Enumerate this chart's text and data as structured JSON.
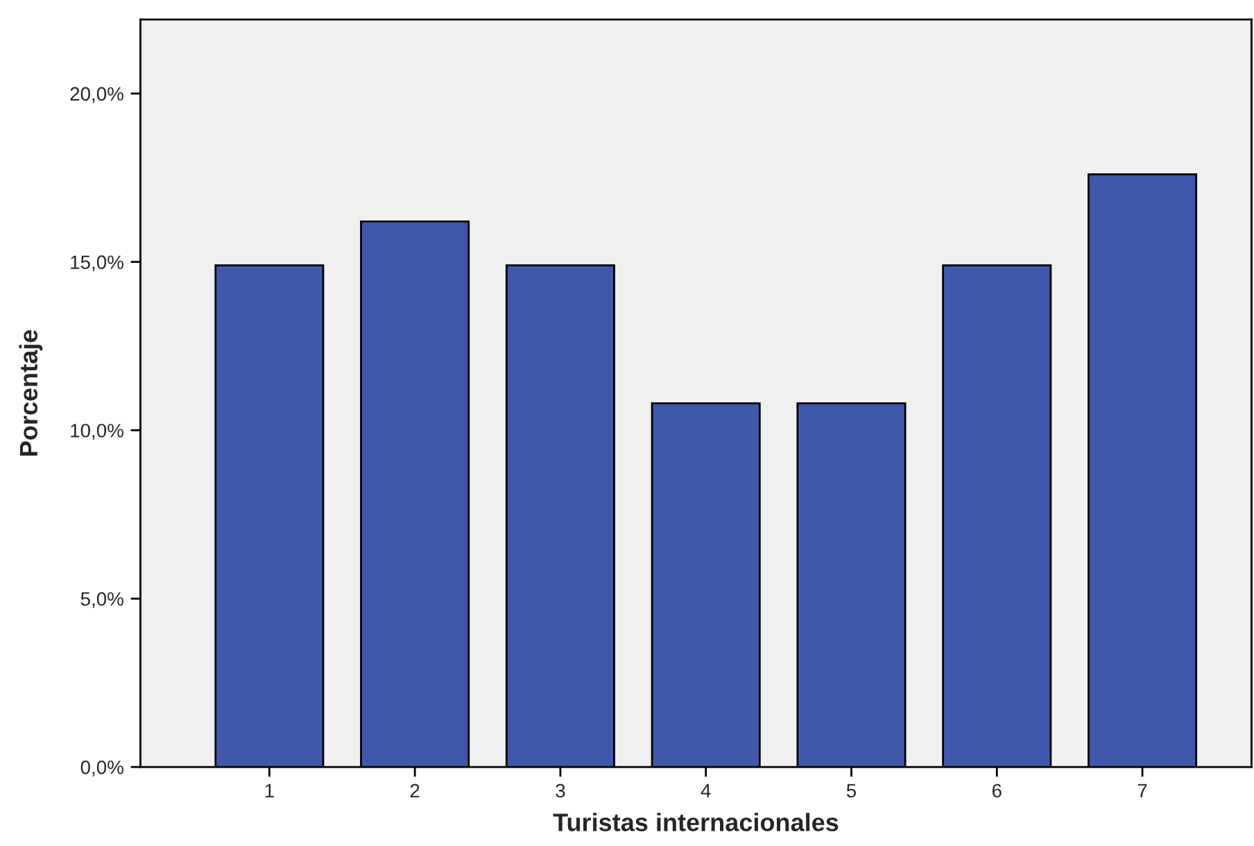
{
  "chart_data": {
    "type": "bar",
    "xlabel": "Turistas internacionales",
    "ylabel": "Porcentaje",
    "categories": [
      "1",
      "2",
      "3",
      "4",
      "5",
      "6",
      "7"
    ],
    "values": [
      14.9,
      16.2,
      14.9,
      10.8,
      10.8,
      14.9,
      17.6
    ],
    "color": "#3f58ab",
    "ylim": [
      0,
      22.2
    ],
    "yticks": [
      {
        "value": 0,
        "label": "0,0%"
      },
      {
        "value": 5,
        "label": "5,0%"
      },
      {
        "value": 10,
        "label": "10,0%"
      },
      {
        "value": 15,
        "label": "15,0%"
      },
      {
        "value": 20,
        "label": "20,0%"
      }
    ],
    "grid": false
  }
}
